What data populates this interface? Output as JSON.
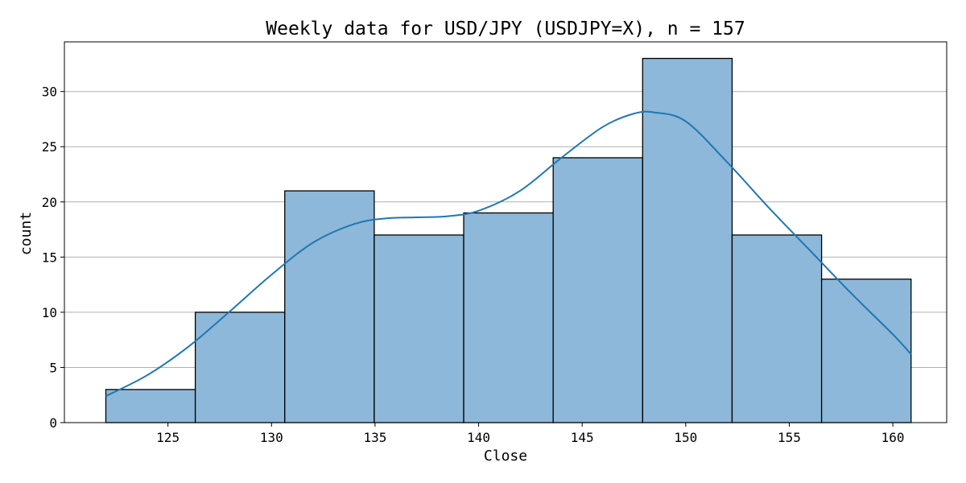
{
  "chart_data": {
    "type": "bar",
    "title": "Weekly data for USD/JPY (USDJPY=X), n = 157",
    "xlabel": "Close",
    "ylabel": "count",
    "xlim": [
      120.0,
      162.6
    ],
    "ylim": [
      0,
      34.5
    ],
    "xticks": [
      125,
      130,
      135,
      140,
      145,
      150,
      155,
      160
    ],
    "yticks": [
      0,
      5,
      10,
      15,
      20,
      25,
      30
    ],
    "grid": "horizontal",
    "bin_edges": [
      122.0,
      126.32,
      130.64,
      134.96,
      139.28,
      143.6,
      147.92,
      152.24,
      156.56,
      160.88
    ],
    "values": [
      3,
      10,
      21,
      17,
      19,
      24,
      33,
      17,
      13
    ],
    "kde": {
      "x": [
        122.0,
        124.0,
        126.0,
        128.0,
        130.0,
        132.0,
        134.0,
        135.5,
        137.0,
        138.5,
        140.0,
        142.0,
        144.0,
        146.0,
        147.5,
        148.5,
        150.0,
        152.0,
        154.0,
        156.0,
        158.0,
        160.0,
        160.88
      ],
      "y": [
        2.4,
        4.3,
        6.9,
        10.1,
        13.4,
        16.3,
        18.0,
        18.5,
        18.6,
        18.7,
        19.2,
        21.0,
        24.0,
        26.8,
        28.0,
        28.1,
        27.3,
        23.6,
        19.5,
        15.6,
        11.7,
        8.0,
        6.2
      ]
    },
    "colors": {
      "bar_fill": "#8db8d9",
      "bar_edge": "#000000",
      "kde_line": "#1f77b4"
    }
  }
}
